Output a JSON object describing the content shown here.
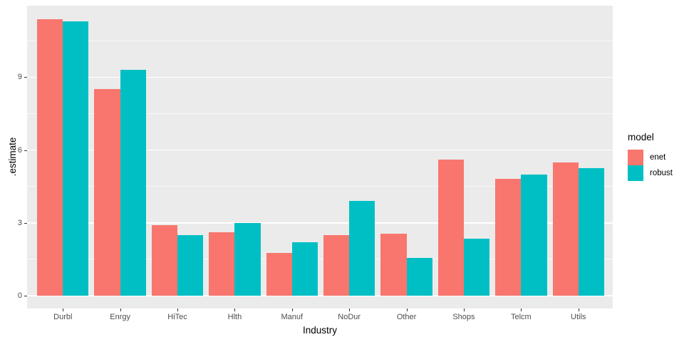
{
  "chart_data": {
    "type": "bar",
    "grouped": true,
    "title": "",
    "xlabel": "Industry",
    "ylabel": ".estimate",
    "categories": [
      "Durbl",
      "Enrgy",
      "HiTec",
      "Hlth",
      "Manuf",
      "NoDur",
      "Other",
      "Shops",
      "Telcm",
      "Utils"
    ],
    "series": [
      {
        "name": "enet",
        "color": "#F8766D",
        "values": [
          11.4,
          8.5,
          2.9,
          2.6,
          1.75,
          2.5,
          2.55,
          5.6,
          4.8,
          5.5
        ]
      },
      {
        "name": "robust",
        "color": "#00BFC4",
        "values": [
          11.3,
          9.3,
          2.5,
          3.0,
          2.2,
          3.9,
          1.55,
          2.35,
          5.0,
          5.25
        ]
      }
    ],
    "y_ticks": [
      0,
      3,
      6,
      9
    ],
    "y_minor_ticks": [
      1.5,
      4.5,
      7.5,
      10.5
    ],
    "ylim": [
      -0.55,
      11.95
    ],
    "grid": true,
    "legend_position": "right",
    "panel_bg": "#EBEBEB",
    "grid_color": "#FFFFFF",
    "tick_label_color": "#4D4D4D",
    "axis_title_color": "#000000"
  },
  "legend": {
    "title": "model",
    "entries": [
      {
        "label": "enet",
        "color": "#F8766D"
      },
      {
        "label": "robust",
        "color": "#00BFC4"
      }
    ]
  }
}
